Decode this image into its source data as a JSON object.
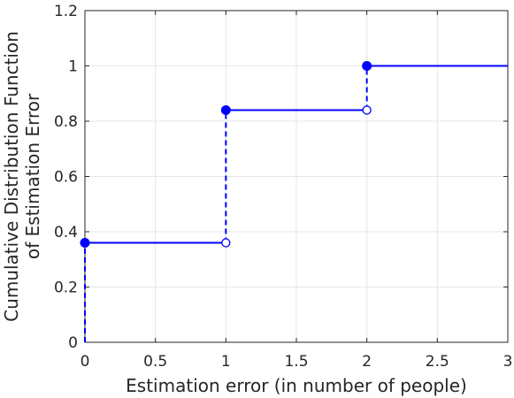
{
  "chart_data": {
    "type": "line",
    "subtype": "step-cdf",
    "title": "",
    "xlabel": "Estimation error (in number of people)",
    "ylabel": [
      "Cumulative Distribution Function",
      "of Estimation Error"
    ],
    "xlim": [
      0,
      3
    ],
    "ylim": [
      0,
      1.2
    ],
    "xticks": [
      0,
      0.5,
      1,
      1.5,
      2,
      2.5,
      3
    ],
    "xtick_labels": [
      "0",
      "0.5",
      "1",
      "1.5",
      "2",
      "2.5",
      "3"
    ],
    "yticks": [
      0,
      0.2,
      0.4,
      0.6,
      0.8,
      1,
      1.2
    ],
    "ytick_labels": [
      "0",
      "0.2",
      "0.4",
      "0.6",
      "0.8",
      "1",
      "1.2"
    ],
    "grid": true,
    "color": "#0000ff",
    "steps": [
      {
        "x_start": 0,
        "x_end": 1,
        "y": 0.36
      },
      {
        "x_start": 1,
        "x_end": 2,
        "y": 0.84
      },
      {
        "x_start": 2,
        "x_end": 3,
        "y": 1
      }
    ],
    "jumps": [
      {
        "x": 0,
        "from": 0,
        "to": 0.36
      },
      {
        "x": 1,
        "from": 0.36,
        "to": 0.84
      },
      {
        "x": 2,
        "from": 0.84,
        "to": 1
      }
    ],
    "filled_points": [
      {
        "x": 0,
        "y": 0.36
      },
      {
        "x": 1,
        "y": 0.84
      },
      {
        "x": 2,
        "y": 1
      }
    ],
    "open_points": [
      {
        "x": 1,
        "y": 0.36
      },
      {
        "x": 2,
        "y": 0.84
      }
    ]
  }
}
